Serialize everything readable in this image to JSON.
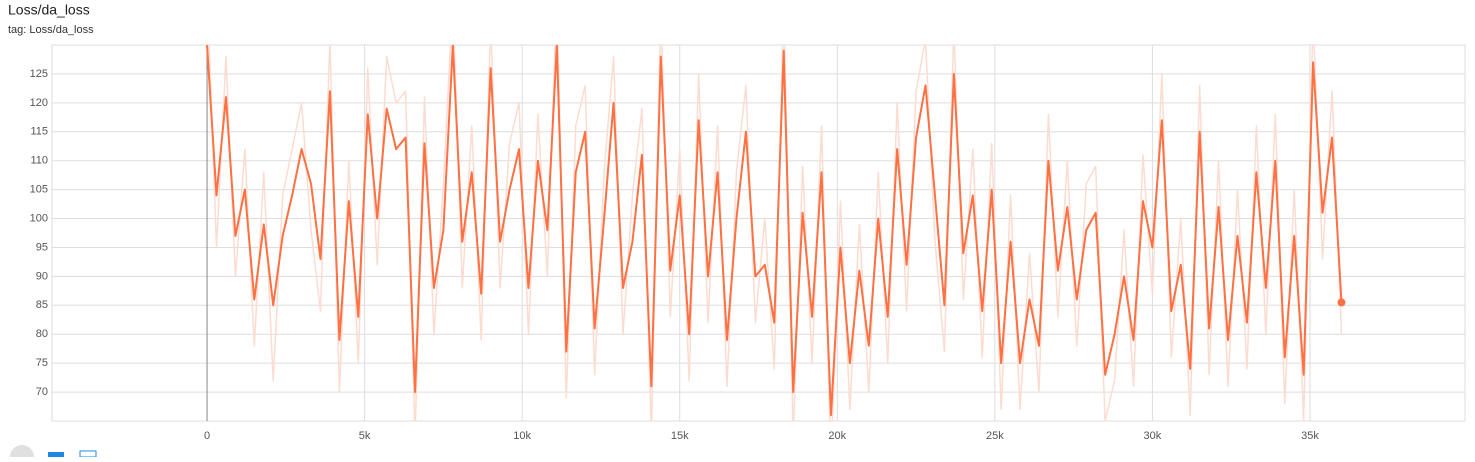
{
  "chart_data": {
    "type": "line",
    "title": "Loss/da_loss",
    "subtitle": "tag: Loss/da_loss",
    "x": [
      0,
      300,
      600,
      900,
      1200,
      1500,
      1800,
      2100,
      2400,
      2700,
      3000,
      3300,
      3600,
      3900,
      4200,
      4500,
      4800,
      5100,
      5400,
      5700,
      6000,
      6300,
      6600,
      6900,
      7200,
      7500,
      7800,
      8100,
      8400,
      8700,
      9000,
      9300,
      9600,
      9900,
      10200,
      10500,
      10800,
      11100,
      11400,
      11700,
      12000,
      12300,
      12600,
      12900,
      13200,
      13500,
      13800,
      14100,
      14400,
      14700,
      15000,
      15300,
      15600,
      15900,
      16200,
      16500,
      16800,
      17100,
      17400,
      17700,
      18000,
      18300,
      18600,
      18900,
      19200,
      19500,
      19800,
      20100,
      20400,
      20700,
      21000,
      21300,
      21600,
      21900,
      22200,
      22500,
      22800,
      23100,
      23400,
      23700,
      24000,
      24300,
      24600,
      24900,
      25200,
      25500,
      25800,
      26100,
      26400,
      26700,
      27000,
      27300,
      27600,
      27900,
      28200,
      28500,
      28800,
      29100,
      29400,
      29700,
      30000,
      30300,
      30600,
      30900,
      31200,
      31500,
      31800,
      32100,
      32400,
      32700,
      33000,
      33300,
      33600,
      33900,
      34200,
      34500,
      34800,
      35100,
      35400,
      35700,
      36000
    ],
    "series": [
      {
        "color": "#ff7043",
        "values": [
          130,
          104,
          121,
          97,
          105,
          86,
          99,
          85,
          97,
          104,
          112,
          106,
          93,
          122,
          79,
          103,
          83,
          118,
          100,
          119,
          112,
          114,
          70,
          113,
          88,
          98,
          130,
          96,
          108,
          87,
          126,
          96,
          105,
          112,
          88,
          110,
          98,
          130,
          77,
          108,
          115,
          81,
          100,
          120,
          88,
          96,
          111,
          71,
          128,
          91,
          104,
          80,
          117,
          90,
          108,
          79,
          100,
          115,
          90,
          92,
          82,
          129,
          70,
          101,
          83,
          108,
          66,
          95,
          75,
          91,
          78,
          100,
          83,
          112,
          92,
          114,
          123,
          104,
          85,
          125,
          94,
          104,
          84,
          105,
          75,
          96,
          75,
          86,
          78,
          110,
          91,
          102,
          86,
          98,
          101,
          73,
          80,
          90,
          79,
          103,
          95,
          117,
          84,
          92,
          74,
          115,
          81,
          102,
          79,
          97,
          82,
          108,
          88,
          110,
          76,
          97,
          73,
          127,
          101,
          114,
          85.5
        ]
      },
      {
        "color": "#fcdcd0",
        "values": [
          140,
          95,
          128,
          90,
          112,
          78,
          108,
          72,
          104,
          112,
          120,
          98,
          84,
          131,
          70,
          110,
          75,
          126,
          92,
          128,
          120,
          122,
          62,
          121,
          80,
          106,
          138,
          88,
          116,
          79,
          134,
          88,
          113,
          120,
          80,
          118,
          90,
          139,
          69,
          116,
          123,
          73,
          108,
          128,
          80,
          104,
          119,
          63,
          136,
          83,
          112,
          72,
          125,
          82,
          116,
          71,
          108,
          123,
          82,
          100,
          74,
          137,
          62,
          109,
          75,
          116,
          58,
          103,
          67,
          99,
          70,
          108,
          75,
          120,
          84,
          122,
          131,
          96,
          77,
          133,
          86,
          112,
          76,
          113,
          67,
          104,
          67,
          94,
          70,
          118,
          83,
          110,
          78,
          106,
          109,
          65,
          72,
          98,
          71,
          111,
          87,
          125,
          76,
          100,
          66,
          123,
          73,
          110,
          71,
          105,
          74,
          116,
          80,
          118,
          68,
          105,
          65,
          135,
          93,
          122,
          80
        ]
      }
    ],
    "xlim": [
      -4920,
      39920
    ],
    "ylim": [
      65,
      130
    ],
    "xticks": [
      0,
      {
        "value": 5000,
        "label": "5k"
      },
      {
        "value": 10000,
        "label": "10k"
      },
      {
        "value": 15000,
        "label": "15k"
      },
      {
        "value": 20000,
        "label": "20k"
      },
      {
        "value": 25000,
        "label": "25k"
      },
      {
        "value": 30000,
        "label": "30k"
      },
      {
        "value": 35000,
        "label": "35k"
      }
    ],
    "yticks": [
      70,
      75,
      80,
      85,
      90,
      95,
      100,
      105,
      110,
      115,
      120,
      125
    ],
    "grid": true
  }
}
